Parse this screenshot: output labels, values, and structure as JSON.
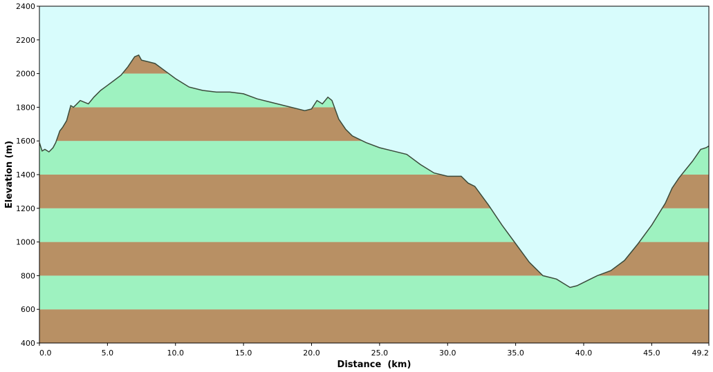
{
  "chart_data": {
    "type": "area",
    "title": "",
    "xlabel": "Distance  (km)",
    "ylabel": "Elevation (m)",
    "xlim": [
      0,
      49.2
    ],
    "ylim": [
      400,
      2400
    ],
    "x_ticks": [
      "0.0",
      "5.0",
      "10.0",
      "15.0",
      "20.0",
      "25.0",
      "30.0",
      "35.0",
      "40.0",
      "45.0",
      "49.2"
    ],
    "y_ticks": [
      "400",
      "600",
      "800",
      "1000",
      "1200",
      "1400",
      "1600",
      "1800",
      "2000",
      "2200",
      "2400"
    ],
    "grid": false,
    "colors": {
      "sky": "#d8fcfc",
      "band_light": "#9ef2c0",
      "band_dark": "#b89064",
      "profile_line": "#3a4a3a"
    },
    "series": [
      {
        "x": [
          0.0,
          0.2,
          0.4,
          0.7,
          1.0,
          1.2,
          1.5,
          1.7,
          2.0,
          2.3,
          2.5,
          2.7,
          3.0,
          3.3,
          3.6,
          4.0,
          4.5,
          5.0,
          5.5,
          6.0,
          6.5,
          7.0,
          7.3,
          7.5,
          8.0,
          8.5,
          9.0,
          10.0,
          11.0,
          12.0,
          13.0,
          14.0,
          15.0,
          16.0,
          17.0,
          18.0,
          19.0,
          19.5,
          20.0,
          20.4,
          20.8,
          21.2,
          21.5,
          22.0,
          22.5,
          23.0,
          24.0,
          25.0,
          26.0,
          27.0,
          28.0,
          29.0,
          30.0,
          31.0,
          31.5,
          32.0,
          33.0,
          34.0,
          35.0,
          36.0,
          37.0,
          38.0,
          39.0,
          39.5,
          40.0,
          40.5,
          41.0,
          42.0,
          43.0,
          44.0,
          45.0,
          46.0,
          46.5,
          47.0,
          48.0,
          48.6,
          49.0,
          49.2
        ],
        "y": [
          1590,
          1540,
          1550,
          1535,
          1560,
          1590,
          1660,
          1680,
          1720,
          1810,
          1800,
          1815,
          1840,
          1830,
          1820,
          1860,
          1900,
          1930,
          1960,
          1990,
          2040,
          2100,
          2110,
          2080,
          2070,
          2060,
          2030,
          1970,
          1920,
          1900,
          1890,
          1890,
          1880,
          1850,
          1830,
          1810,
          1790,
          1780,
          1790,
          1840,
          1820,
          1860,
          1840,
          1730,
          1670,
          1630,
          1590,
          1560,
          1540,
          1520,
          1460,
          1410,
          1390,
          1390,
          1350,
          1330,
          1220,
          1100,
          990,
          880,
          800,
          780,
          730,
          740,
          760,
          780,
          800,
          830,
          890,
          990,
          1100,
          1230,
          1320,
          1380,
          1480,
          1550,
          1560,
          1570
        ]
      }
    ]
  }
}
